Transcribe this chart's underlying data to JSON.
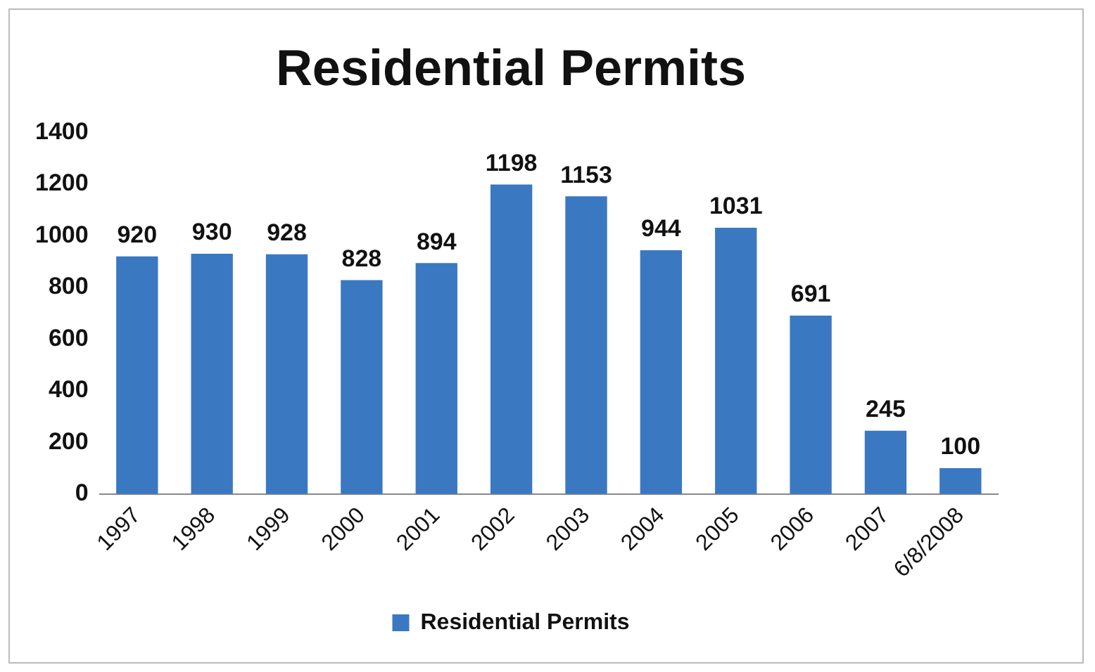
{
  "chart_data": {
    "type": "bar",
    "title": "Residential Permits",
    "categories": [
      "1997",
      "1998",
      "1999",
      "2000",
      "2001",
      "2002",
      "2003",
      "2004",
      "2005",
      "2006",
      "2007",
      "6/8/2008"
    ],
    "series": [
      {
        "name": "Residential Permits",
        "color": "#3a78c2",
        "values": [
          920,
          930,
          928,
          828,
          894,
          1198,
          1153,
          944,
          1031,
          691,
          245,
          100
        ]
      }
    ],
    "ylim": [
      0,
      1400
    ],
    "yticks": [
      0,
      200,
      400,
      600,
      800,
      1000,
      1200,
      1400
    ],
    "grid": false,
    "legend": "bottom",
    "data_labels": true
  }
}
